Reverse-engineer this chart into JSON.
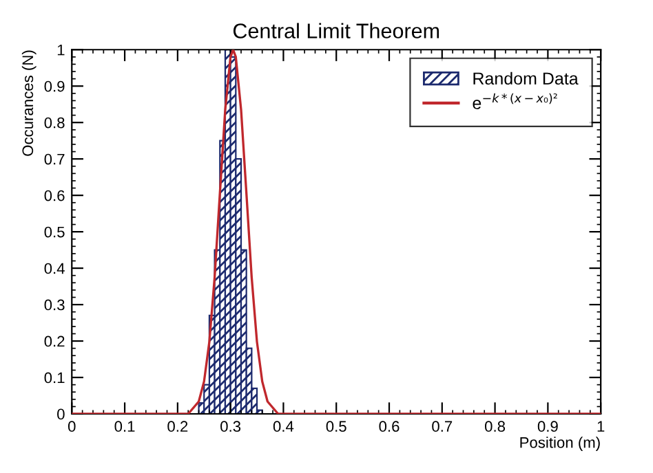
{
  "chart_data": {
    "type": "histogram",
    "title": "Central Limit Theorem",
    "xlabel": "Position (m)",
    "ylabel": "Occurances (N)",
    "series": [
      {
        "name": "Random Data",
        "color": "#1c2a6e",
        "bins": [
          0.24,
          0.25,
          0.26,
          0.27,
          0.28,
          0.29,
          0.3,
          0.31,
          0.32,
          0.33,
          0.34,
          0.35,
          0.36
        ],
        "values": [
          0.03,
          0.08,
          0.27,
          0.45,
          0.75,
          1.0,
          0.98,
          0.7,
          0.45,
          0.18,
          0.07,
          0.01
        ]
      },
      {
        "name": "e$^{−k*(x−x₀)²}$",
        "type": "line",
        "color": "#c0282d",
        "x": [
          0,
          0.1,
          0.2,
          0.22,
          0.24,
          0.25,
          0.26,
          0.27,
          0.28,
          0.29,
          0.3,
          0.305,
          0.31,
          0.32,
          0.33,
          0.34,
          0.35,
          0.36,
          0.37,
          0.39,
          0.5,
          1.0
        ],
        "values": [
          0,
          0,
          0,
          0,
          0.034,
          0.089,
          0.198,
          0.375,
          0.607,
          0.835,
          0.98,
          1,
          0.98,
          0.835,
          0.607,
          0.375,
          0.198,
          0.089,
          0.034,
          0,
          0,
          0
        ]
      }
    ],
    "xlim": [
      0,
      1
    ],
    "ylim": [
      0,
      1
    ],
    "xticks": [
      0,
      0.1,
      0.2,
      0.3,
      0.4,
      0.5,
      0.6,
      0.7,
      0.8,
      0.9,
      1
    ],
    "yticks": [
      0,
      0.1,
      0.2,
      0.3,
      0.4,
      0.5,
      0.6,
      0.7,
      0.8,
      0.9,
      1
    ],
    "grid": false,
    "legend": "top right"
  }
}
